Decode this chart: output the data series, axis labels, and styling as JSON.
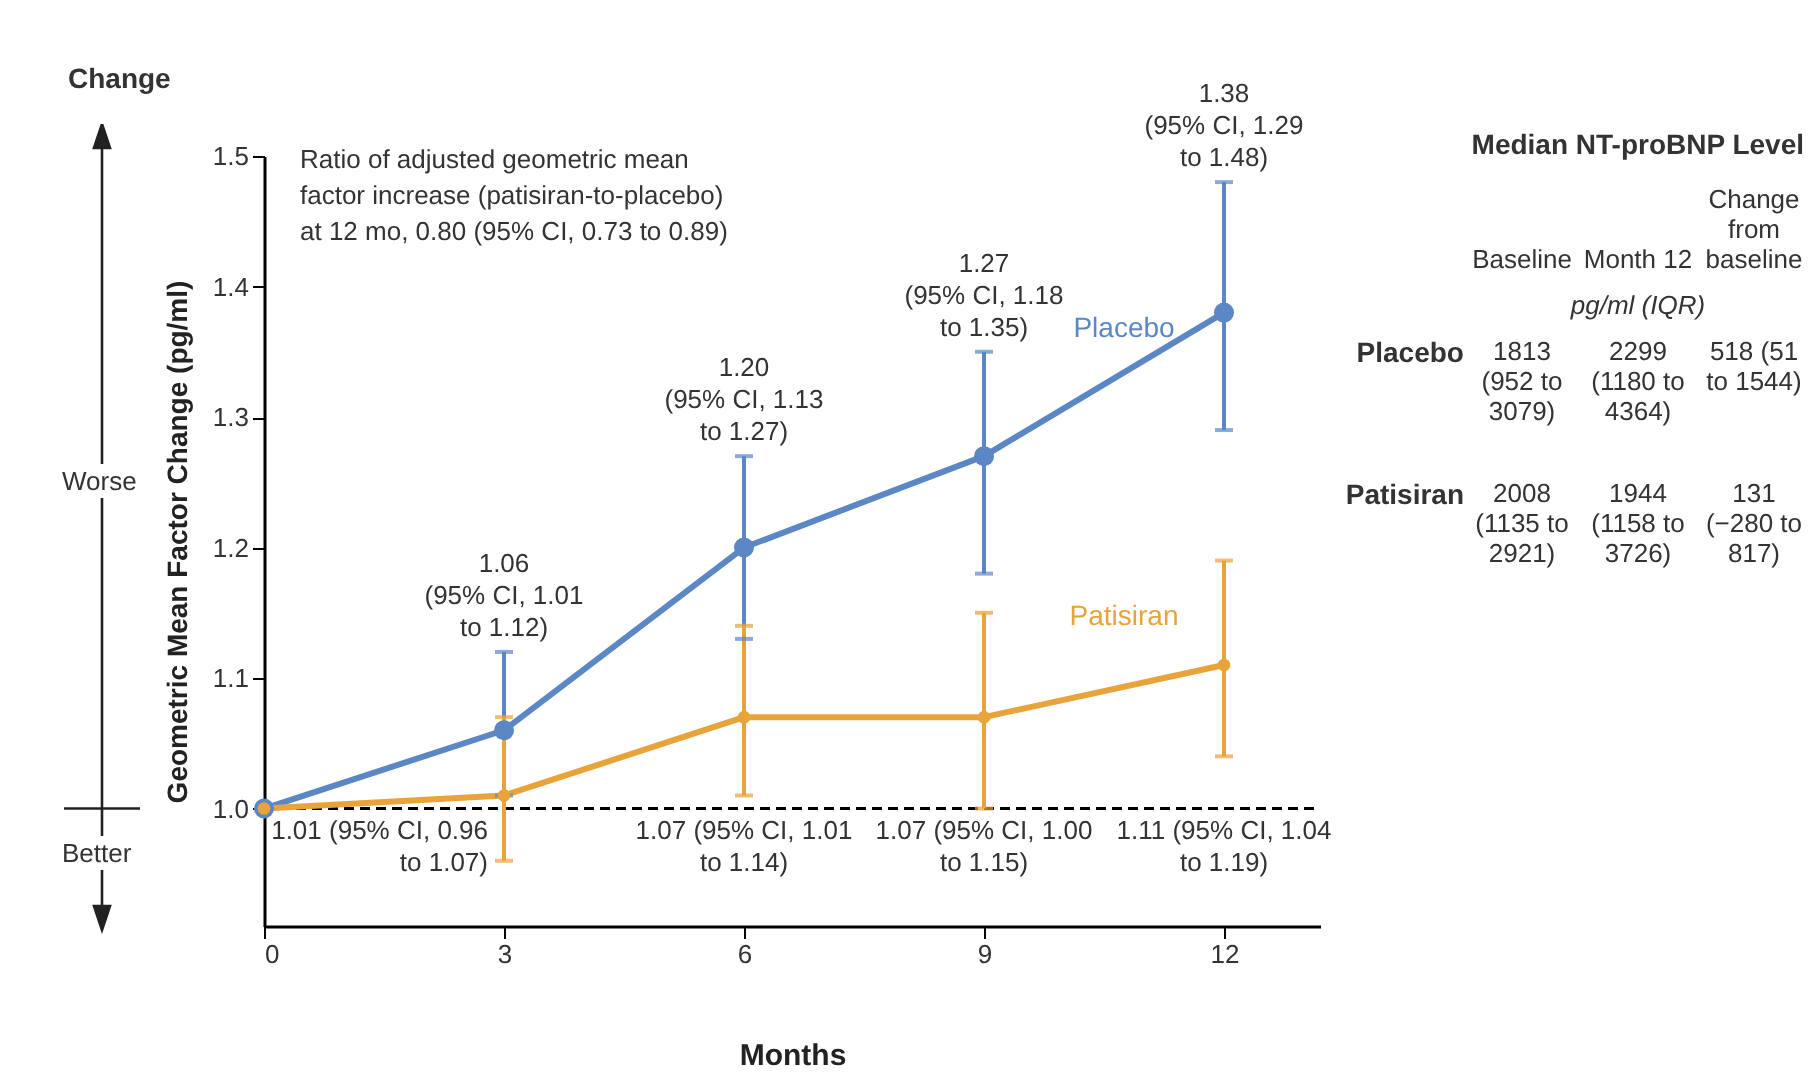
{
  "chart_data": [
    {
      "type": "line",
      "xlabel": "Months",
      "ylabel": "Geometric Mean Factor Change (pg/ml)",
      "x": [
        0,
        3,
        6,
        9,
        12
      ],
      "xlim": [
        0,
        13.2
      ],
      "xticks": [
        0,
        3,
        6,
        9,
        12
      ],
      "ylim": [
        0.91,
        1.5
      ],
      "yticks": [
        {
          "value": 1.0,
          "label": "1.0"
        },
        1.1,
        1.2,
        1.3,
        1.4,
        1.5
      ],
      "grid": false,
      "legend": false,
      "marker": "circle",
      "series": [
        {
          "name": "Placebo",
          "color": "#5b87c5",
          "values": [
            1.0,
            1.06,
            1.2,
            1.27,
            1.38
          ],
          "errors": [
            null,
            [
              1.01,
              1.12
            ],
            [
              1.13,
              1.27
            ],
            [
              1.18,
              1.35
            ],
            [
              1.29,
              1.48
            ]
          ]
        },
        {
          "name": "Patisiran",
          "color": "#e8a33a",
          "values": [
            1.0,
            1.01,
            1.07,
            1.07,
            1.11
          ],
          "errors": [
            null,
            [
              0.96,
              1.07
            ],
            [
              1.01,
              1.14
            ],
            [
              1.0,
              1.15
            ],
            [
              1.04,
              1.19
            ]
          ]
        }
      ],
      "ref_lines": [
        {
          "axis": "y",
          "value": 1.0,
          "line_style": "dashed",
          "color": "#000000"
        }
      ],
      "annotations": [
        "Change",
        "Worse",
        "Better",
        "Ratio of adjusted geometric mean\nfactor increase (patisiran-to-placebo)\nat 12 mo, 0.80 (95% CI, 0.73 to 0.89)",
        "1.06\n(95% CI, 1.01\nto 1.12)",
        "1.20\n(95% CI, 1.13\nto 1.27)",
        "1.27\n(95% CI, 1.18\nto 1.35)",
        "1.38\n(95% CI, 1.29\nto 1.48)",
        "1.01 (95% CI, 0.96\nto 1.07)",
        "1.07 (95% CI, 1.01\nto 1.14)",
        "1.07 (95% CI, 1.00\nto 1.15)",
        "1.11 (95% CI, 1.04\nto 1.19)"
      ]
    },
    {
      "type": "other",
      "title": "Median NT-proBNP Level",
      "annotations": [
        "Baseline",
        "Month 12",
        "Change from baseline",
        "pg/ml (IQR)",
        "Placebo",
        "1813 (952 to 3079)",
        "2299 (1180 to 4364)",
        "518 (51 to 1544)",
        "Patisiran",
        "2008 (1135 to 2921)",
        "1944 (1158 to 3726)",
        "131 (−280 to 817)"
      ]
    }
  ]
}
